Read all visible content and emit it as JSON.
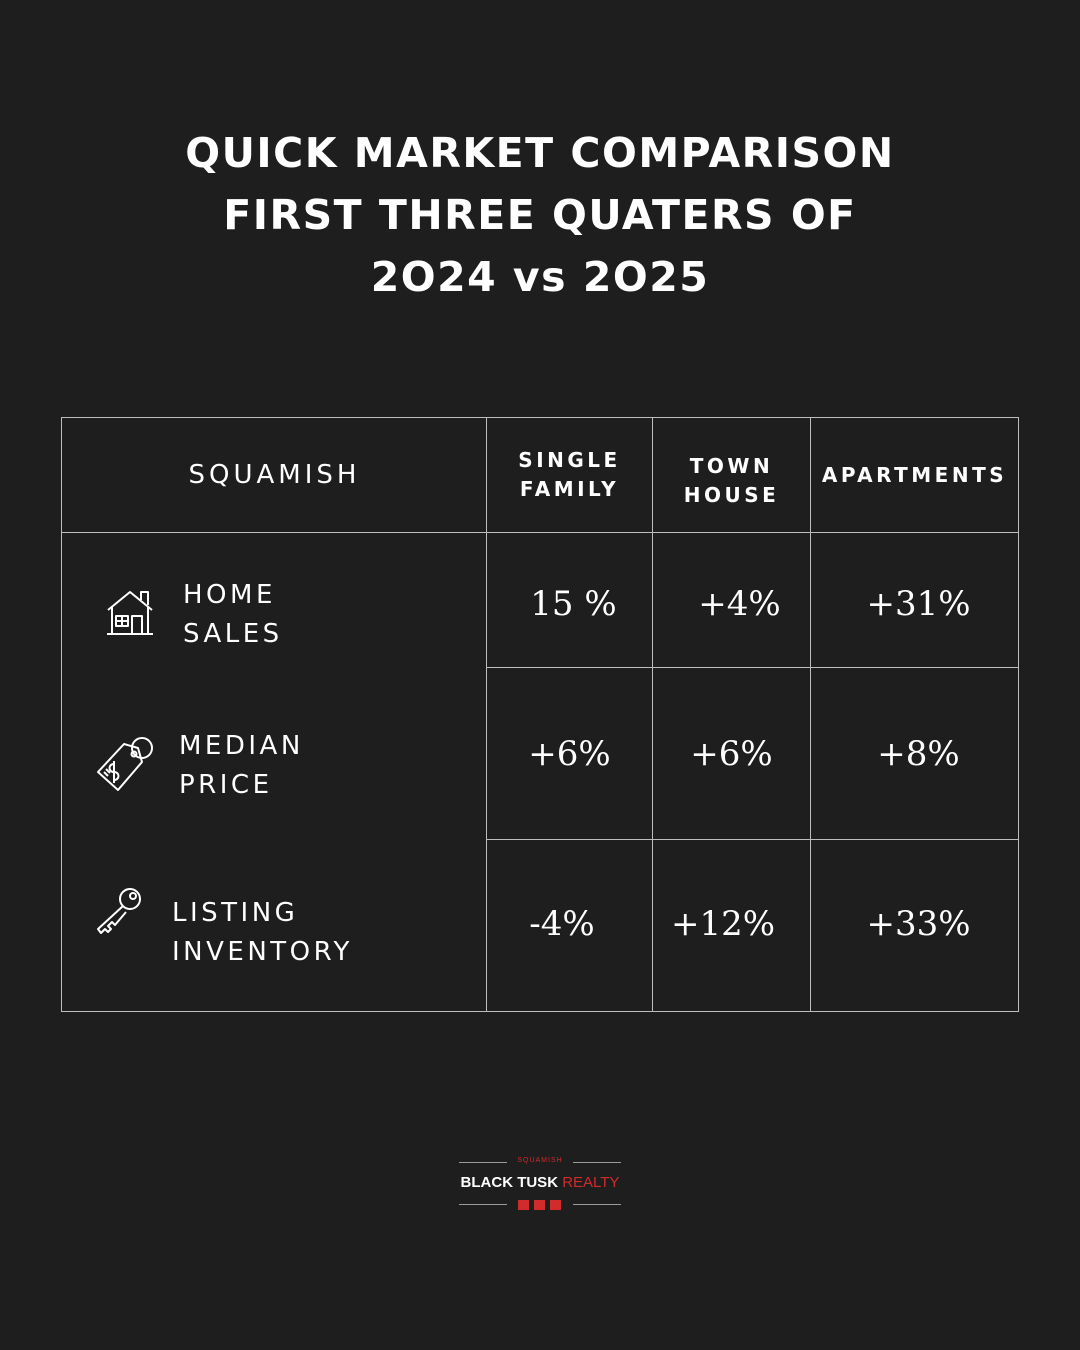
{
  "title": {
    "line1": "QUICK MARKET COMPARISON",
    "line2": "FIRST THREE QUATERS OF",
    "line3": "2O24 vs 2O25"
  },
  "table": {
    "region": "SQUAMISH",
    "columns": [
      {
        "line1": "SINGLE",
        "line2": "FAMILY"
      },
      {
        "line1": "TOWN",
        "line2": "HOUSE"
      },
      {
        "line1": "APARTMENTS",
        "line2": ""
      }
    ],
    "rows": [
      {
        "label_line1": "HOME",
        "label_line2": "SALES",
        "icon": "house-icon",
        "values": [
          "15 %",
          "+4%",
          "+31%"
        ]
      },
      {
        "label_line1": "MEDIAN",
        "label_line2": "PRICE",
        "icon": "price-tag-icon",
        "values": [
          "+6%",
          "+6%",
          "+8%"
        ]
      },
      {
        "label_line1": "LISTING",
        "label_line2": "INVENTORY",
        "icon": "key-icon",
        "values": [
          "-4%",
          "+12%",
          "+33%"
        ]
      }
    ]
  },
  "logo": {
    "small_text": "SQUAMISH",
    "brand_main": "BLACK TUSK",
    "brand_accent": "REALTY",
    "accent_color": "#d22b2b"
  },
  "colors": {
    "background": "#1e1e1e",
    "text": "#ffffff",
    "grid": "#bdbdbd"
  }
}
